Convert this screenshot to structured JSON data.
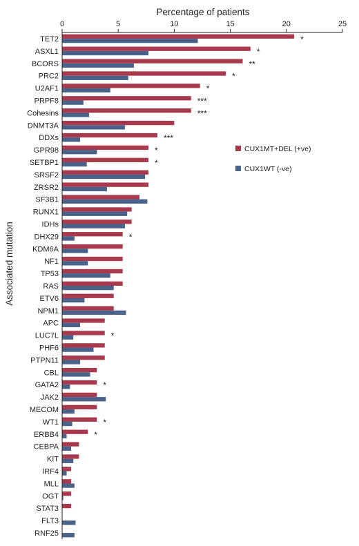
{
  "colors": {
    "positive": "#a93a4d",
    "negative": "#4a6289",
    "axis": "#222222"
  },
  "chart_data": {
    "type": "bar",
    "orientation": "horizontal",
    "title": "",
    "xlabel": "Percentage of patients",
    "ylabel": "Associated mutation",
    "xlim": [
      0,
      25
    ],
    "xticks": [
      0,
      5,
      10,
      15,
      20,
      25
    ],
    "x_axis_position": "top",
    "grid": false,
    "legend_position": "right",
    "categories": [
      "TET2",
      "ASXL1",
      "BCORS",
      "PRC2",
      "U2AF1",
      "PRPF8",
      "Cohesins",
      "DNMT3A",
      "DDXs",
      "GPR98",
      "SETBP1",
      "SRSF2",
      "ZRSR2",
      "SF3B1",
      "RUNX1",
      "IDHs",
      "DHX29",
      "KDM6A",
      "NF1",
      "TP53",
      "RAS",
      "ETV6",
      "NPM1",
      "APC",
      "LUC7L",
      "PHF6",
      "PTPN11",
      "CBL",
      "GATA2",
      "JAK2",
      "MECOM",
      "WT1",
      "ERBB4",
      "CEBPA",
      "KIT",
      "IRF4",
      "MLL",
      "OGT",
      "STAT3",
      "FLT3",
      "RNF25"
    ],
    "series": [
      {
        "name": "CUX1MT+DEL (+ve)",
        "color": "#a93a4d",
        "values": [
          20.7,
          16.8,
          16.1,
          14.6,
          12.3,
          11.5,
          11.5,
          10.0,
          8.5,
          7.7,
          7.7,
          7.7,
          7.7,
          6.9,
          6.2,
          6.2,
          5.4,
          5.4,
          5.4,
          5.4,
          5.4,
          4.6,
          4.6,
          3.8,
          3.8,
          3.8,
          3.8,
          3.1,
          3.1,
          3.1,
          3.1,
          3.1,
          2.3,
          1.5,
          1.5,
          0.8,
          0.8,
          0.8,
          0.8,
          0,
          0
        ]
      },
      {
        "name": "CUX1WT (-ve)",
        "color": "#4a6289",
        "values": [
          12.1,
          7.7,
          6.4,
          5.9,
          4.3,
          1.9,
          2.4,
          5.6,
          1.6,
          3.1,
          2.2,
          7.4,
          4.0,
          7.6,
          5.8,
          5.6,
          1.1,
          2.3,
          2.3,
          4.3,
          4.6,
          2.0,
          5.7,
          1.6,
          1.0,
          2.8,
          1.6,
          2.5,
          0.7,
          3.9,
          1.1,
          0.9,
          0.4,
          0.8,
          1.0,
          0.4,
          1.1,
          0.1,
          0,
          1.2,
          1.1
        ]
      }
    ],
    "significance": [
      "*",
      "*",
      "**",
      "*",
      "*",
      "***",
      "***",
      "",
      "***",
      "*",
      "*",
      "",
      "",
      "",
      "",
      "",
      "*",
      "",
      "",
      "",
      "",
      "",
      "",
      "",
      "*",
      "",
      "",
      "",
      "*",
      "",
      "",
      "*",
      "*",
      "",
      "",
      "",
      "",
      "",
      "",
      "",
      ""
    ]
  }
}
